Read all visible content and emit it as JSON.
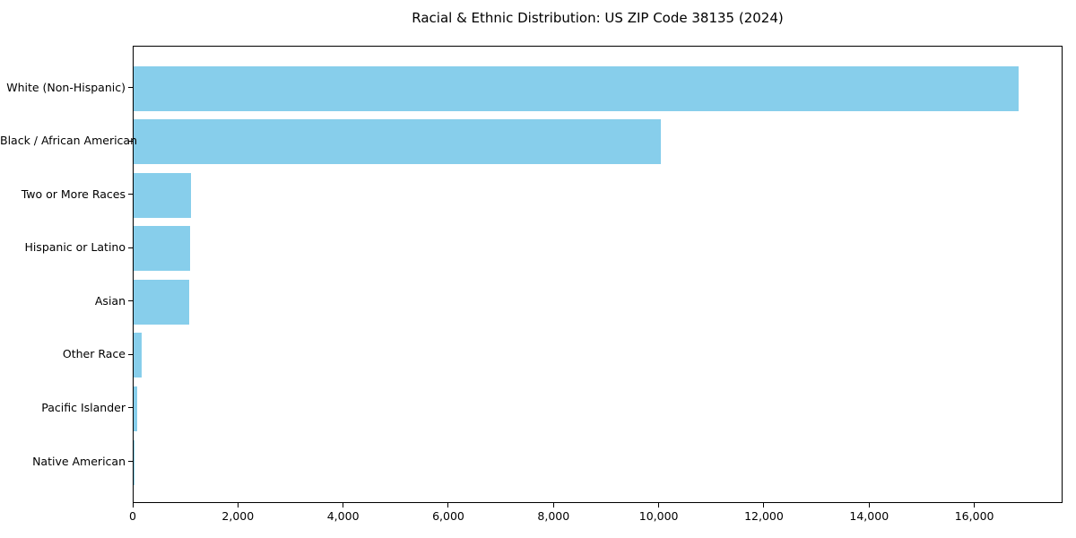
{
  "title": "Racial & Ethnic Distribution: US ZIP Code 38135 (2024)",
  "chart_data": {
    "type": "bar",
    "orientation": "horizontal",
    "title": "Racial & Ethnic Distribution: US ZIP Code 38135 (2024)",
    "categories": [
      "White (Non-Hispanic)",
      "Black / African American",
      "Two or More Races",
      "Hispanic or Latino",
      "Asian",
      "Other Race",
      "Pacific Islander",
      "Native American"
    ],
    "values": [
      16830,
      10020,
      1090,
      1070,
      1055,
      150,
      73,
      10
    ],
    "xlabel": "",
    "ylabel": "",
    "xlim": [
      0,
      17677
    ],
    "x_ticks": [
      0,
      2000,
      4000,
      6000,
      8000,
      10000,
      12000,
      14000,
      16000
    ],
    "x_tick_labels": [
      "0",
      "2,000",
      "4,000",
      "6,000",
      "8,000",
      "10,000",
      "12,000",
      "14,000",
      "16,000"
    ],
    "bar_color": "#87CEEB",
    "axis_color": "#000000",
    "text_color": "#000000",
    "background_color": "#ffffff",
    "grid": false,
    "legend": null
  }
}
